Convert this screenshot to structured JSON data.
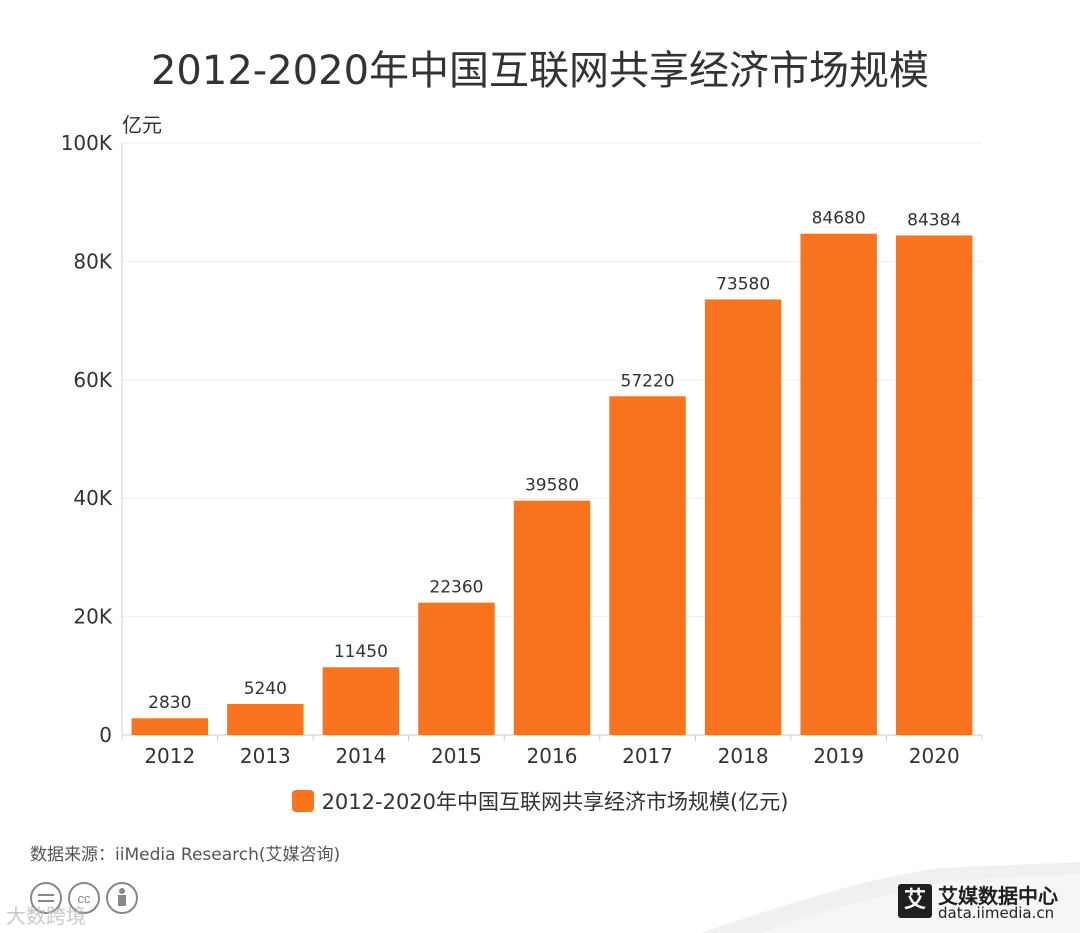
{
  "colors": {
    "bar": "#fa741e",
    "text": "#333333",
    "axis": "#cccccc",
    "grid": "#eeeeee"
  },
  "chart_data": {
    "type": "bar",
    "title": "2012-2020年中国互联网共享经济市场规模",
    "ylabel": "亿元",
    "xlabel": "",
    "categories": [
      "2012",
      "2013",
      "2014",
      "2015",
      "2016",
      "2017",
      "2018",
      "2019",
      "2020"
    ],
    "series": [
      {
        "name": "2012-2020年中国互联网共享经济市场规模(亿元)",
        "values": [
          2830,
          5240,
          11450,
          22360,
          39580,
          57220,
          73580,
          84680,
          84384
        ]
      }
    ],
    "ylim": [
      0,
      100000
    ],
    "yticks": [
      0,
      20000,
      40000,
      60000,
      80000,
      100000
    ],
    "ytick_labels": [
      "0",
      "20K",
      "40K",
      "60K",
      "80K",
      "100K"
    ],
    "grid": true,
    "legend_position": "bottom-center"
  },
  "source": "数据来源：iiMedia Research(艾媒咨询)",
  "brand": {
    "logo_char": "艾",
    "name": "艾媒数据中心",
    "url": "data.iimedia.cn",
    "logo_icon": "iimedia-logo-icon"
  },
  "license_icons": [
    "cc-icon",
    "by-icon"
  ],
  "watermark": "大数跨境"
}
